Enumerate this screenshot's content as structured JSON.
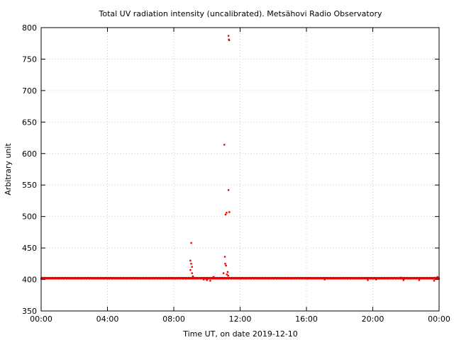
{
  "chart_data": {
    "type": "scatter",
    "title": "Total UV radiation intensity (uncalibrated). Metsähovi Radio Observatory",
    "xlabel": "Time UT, on date 2019-12-10",
    "ylabel": "Arbitrary unit",
    "xlim": [
      0,
      24
    ],
    "ylim": [
      350,
      800
    ],
    "x_ticks": [
      {
        "value": 0,
        "label": "00:00"
      },
      {
        "value": 4,
        "label": "04:00"
      },
      {
        "value": 8,
        "label": "08:00"
      },
      {
        "value": 12,
        "label": "12:00"
      },
      {
        "value": 16,
        "label": "16:00"
      },
      {
        "value": 20,
        "label": "20:00"
      },
      {
        "value": 24,
        "label": "00:00"
      }
    ],
    "y_ticks": [
      {
        "value": 350,
        "label": "350"
      },
      {
        "value": 400,
        "label": "400"
      },
      {
        "value": 450,
        "label": "450"
      },
      {
        "value": 500,
        "label": "500"
      },
      {
        "value": 550,
        "label": "550"
      },
      {
        "value": 600,
        "label": "600"
      },
      {
        "value": 650,
        "label": "650"
      },
      {
        "value": 700,
        "label": "700"
      },
      {
        "value": 750,
        "label": "750"
      },
      {
        "value": 800,
        "label": "800"
      }
    ],
    "grid": true,
    "series": [
      {
        "color": "#ee0000",
        "baseline": {
          "x_range": [
            0,
            24
          ],
          "y": 402
        },
        "points": [
          {
            "x": 9.05,
            "y": 458
          },
          {
            "x": 9.0,
            "y": 430
          },
          {
            "x": 9.05,
            "y": 425
          },
          {
            "x": 9.1,
            "y": 420
          },
          {
            "x": 9.0,
            "y": 415
          },
          {
            "x": 9.1,
            "y": 410
          },
          {
            "x": 9.15,
            "y": 405
          },
          {
            "x": 11.05,
            "y": 614
          },
          {
            "x": 11.08,
            "y": 436
          },
          {
            "x": 11.1,
            "y": 425
          },
          {
            "x": 11.15,
            "y": 422
          },
          {
            "x": 11.12,
            "y": 503
          },
          {
            "x": 11.18,
            "y": 506
          },
          {
            "x": 11.0,
            "y": 410
          },
          {
            "x": 11.2,
            "y": 408
          },
          {
            "x": 11.3,
            "y": 787
          },
          {
            "x": 11.32,
            "y": 781
          },
          {
            "x": 11.34,
            "y": 780
          },
          {
            "x": 11.3,
            "y": 542
          },
          {
            "x": 11.35,
            "y": 507
          },
          {
            "x": 11.25,
            "y": 412
          },
          {
            "x": 11.28,
            "y": 406
          },
          {
            "x": 9.8,
            "y": 400
          },
          {
            "x": 10.0,
            "y": 399
          },
          {
            "x": 10.2,
            "y": 398
          },
          {
            "x": 10.4,
            "y": 404
          },
          {
            "x": 17.1,
            "y": 400
          },
          {
            "x": 19.7,
            "y": 399
          },
          {
            "x": 20.2,
            "y": 400
          },
          {
            "x": 21.7,
            "y": 403
          },
          {
            "x": 21.85,
            "y": 399
          },
          {
            "x": 22.8,
            "y": 399
          },
          {
            "x": 23.7,
            "y": 398
          },
          {
            "x": 23.9,
            "y": 404
          }
        ]
      }
    ]
  }
}
